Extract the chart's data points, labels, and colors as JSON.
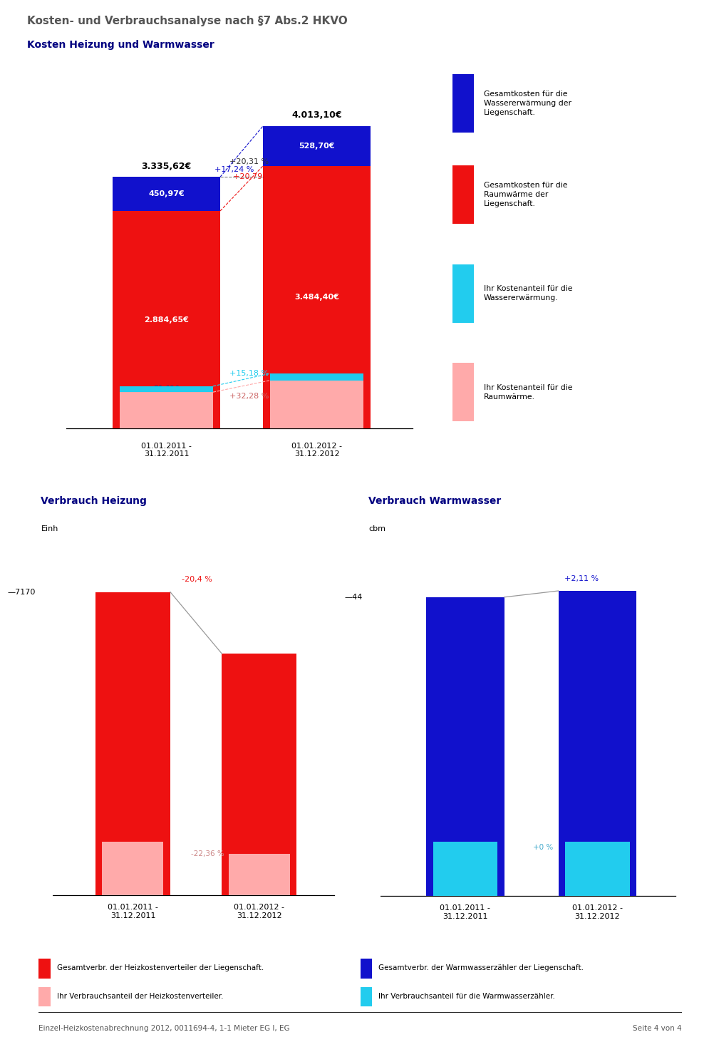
{
  "title_main": "Kosten- und Verbrauchsanalyse nach §7 Abs.2 HKVO",
  "title_sub": "Kosten Heizung und Warmwasser",
  "title_sub2_left": "Verbrauch Heizung",
  "title_sub2_right": "Verbrauch Warmwasser",
  "unit_left": "Einh",
  "unit_right": "cbm",
  "bg_color": "#ffffff",
  "header_bg": "#c8c8c8",
  "bar1": {
    "label": "01.01.2011 -\n31.12.2011",
    "red": 2884.65,
    "blue": 450.97,
    "light_red": 484.01,
    "cyan": 78.63,
    "total": 3335.62
  },
  "bar2": {
    "label": "01.01.2012 -\n31.12.2012",
    "red": 3484.4,
    "blue": 528.7,
    "light_red": 640.26,
    "cyan": 90.57,
    "total": 4013.1
  },
  "pct_total": "+20,31 %",
  "pct_blue": "+17,24 %",
  "pct_red": "+20,79 %",
  "pct_light_red": "+32,28 %",
  "pct_cyan": "+15,18 %",
  "legend_blue": "Gesamtkosten für die\nWassererwärmung der\nLiegenschaft.",
  "legend_red": "Gesamtkosten für die\nRaumwärme der\nLiegenschaft.",
  "legend_cyan": "Ihr Kostenanteil für die\nWassererwärmung.",
  "legend_light_red": "Ihr Kostenanteil für die\nRaumwärme.",
  "color_blue": "#1111cc",
  "color_red": "#ee1111",
  "color_light_red": "#ffaaaa",
  "color_cyan": "#22ccee",
  "heizung": {
    "val1": 100.0,
    "val2": 79.6,
    "pct_change": "-20,4 %",
    "share2011": 17.43,
    "share2012": 17.01,
    "pct_share_change": "-22,36 %",
    "yref": "7170",
    "label2011": "01.01.2011 -\n31.12.2011",
    "label2012": "01.01.2012 -\n31.12.2012"
  },
  "warmwasser": {
    "val1": 100.0,
    "val2": 102.11,
    "pct_change": "+2,11 %",
    "share2011": 18.11,
    "share2012": 17.74,
    "pct_share_change": "+0 %",
    "yref": "44",
    "label2011": "01.01.2011 -\n31.12.2011",
    "label2012": "01.01.2012 -\n31.12.2012"
  },
  "vleg_left1": "Gesamtverbr. der Heizkostenverteiler der Liegenschaft.",
  "vleg_left2": "Ihr Verbrauchsanteil der Heizkostenverteiler.",
  "vleg_right1": "Gesamtverbr. der Warmwasserzähler der Liegenschaft.",
  "vleg_right2": "Ihr Verbrauchsanteil für die Warmwasserzähler.",
  "footer": "Einzel-Heizkostenabrechnung 2012, 0011694-4, 1-1 Mieter EG I, EG",
  "footer_right": "Seite 4 von 4"
}
